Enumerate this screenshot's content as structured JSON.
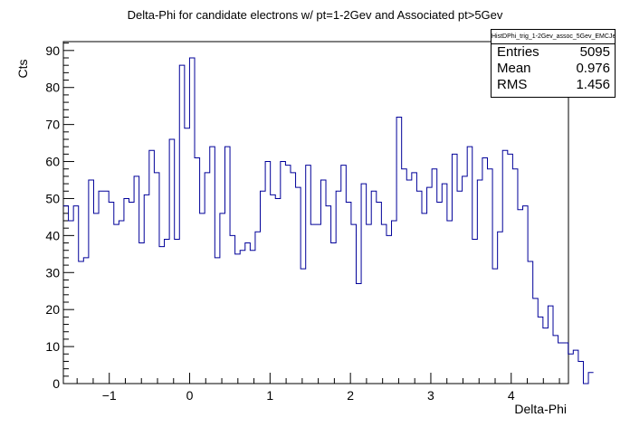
{
  "chart_data": {
    "type": "bar",
    "title": "Delta-Phi for candidate electrons w/ pt=1-2Gev and Associated pt>5Gev",
    "xlabel": "Delta-Phi",
    "ylabel": "Cts",
    "xlim": [
      -1.571,
      4.712
    ],
    "ylim": [
      0,
      92.4
    ],
    "bin_width": 0.0628,
    "x_ticks": [
      -1,
      0,
      1,
      2,
      3,
      4
    ],
    "y_ticks": [
      0,
      10,
      20,
      30,
      40,
      50,
      60,
      70,
      80,
      90
    ],
    "grid": false,
    "line_color": "#000099",
    "values": [
      48,
      44,
      48,
      33,
      34,
      55,
      46,
      52,
      52,
      49,
      43,
      44,
      50,
      49,
      56,
      38,
      51,
      63,
      57,
      37,
      39,
      66,
      39,
      86,
      69,
      88,
      61,
      46,
      57,
      64,
      34,
      46,
      64,
      40,
      35,
      36,
      38,
      36,
      41,
      52,
      60,
      51,
      50,
      60,
      59,
      57,
      53,
      31,
      59,
      43,
      43,
      55,
      48,
      38,
      52,
      59,
      49,
      43,
      27,
      54,
      43,
      52,
      49,
      43,
      40,
      44,
      72,
      58,
      55,
      57,
      52,
      46,
      53,
      58,
      49,
      54,
      44,
      62,
      52,
      56,
      64,
      39,
      55,
      61,
      58,
      31,
      41,
      63,
      62,
      58,
      47,
      48,
      33,
      23,
      18,
      15,
      21,
      13,
      11,
      11,
      8,
      9,
      6,
      0,
      3
    ],
    "stats": {
      "name": "HistDPhi_trig_1-2Gev_assoc_5Gev_EMCJet",
      "entries_label": "Entries",
      "entries": "5095",
      "mean_label": "Mean",
      "mean": "0.976",
      "rms_label": "RMS",
      "rms": "1.456"
    }
  }
}
